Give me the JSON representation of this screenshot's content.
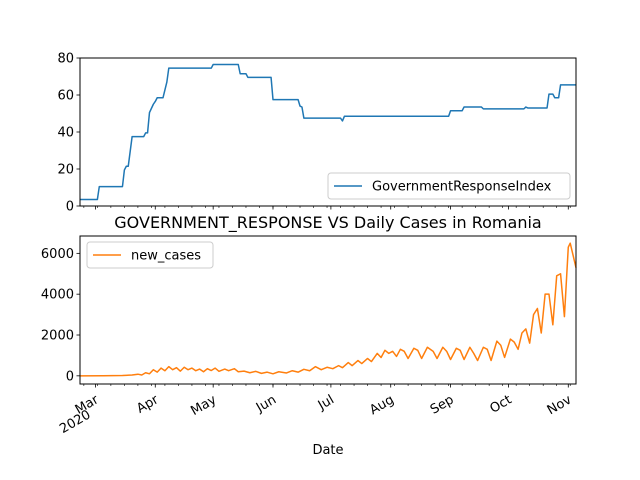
{
  "chart_data": [
    {
      "type": "line",
      "title": "",
      "xlabel": "",
      "ylabel": "",
      "ylim": [
        0,
        80
      ],
      "yticks": [
        0,
        20,
        40,
        60,
        80
      ],
      "xlim": [
        "2020-02-22",
        "2020-11-05"
      ],
      "legend": "lower-right",
      "colors": {
        "GovernmentResponseIndex": "#1f77b4"
      },
      "series": [
        {
          "name": "GovernmentResponseIndex",
          "points": [
            [
              "2020-02-22",
              3.5
            ],
            [
              "2020-03-02",
              3.5
            ],
            [
              "2020-03-03",
              10.5
            ],
            [
              "2020-03-15",
              10.5
            ],
            [
              "2020-03-16",
              19.5
            ],
            [
              "2020-03-17",
              21.5
            ],
            [
              "2020-03-18",
              21.5
            ],
            [
              "2020-03-20",
              37.5
            ],
            [
              "2020-03-26",
              37.5
            ],
            [
              "2020-03-27",
              39.5
            ],
            [
              "2020-03-28",
              39.5
            ],
            [
              "2020-03-29",
              50.5
            ],
            [
              "2020-03-31",
              55
            ],
            [
              "2020-04-01",
              56.5
            ],
            [
              "2020-04-02",
              58.5
            ],
            [
              "2020-04-05",
              58.5
            ],
            [
              "2020-04-07",
              67
            ],
            [
              "2020-04-08",
              74.5
            ],
            [
              "2020-04-30",
              74.5
            ],
            [
              "2020-05-01",
              76.5
            ],
            [
              "2020-05-14",
              76.5
            ],
            [
              "2020-05-15",
              71.5
            ],
            [
              "2020-05-18",
              71.5
            ],
            [
              "2020-05-19",
              69.5
            ],
            [
              "2020-05-31",
              69.5
            ],
            [
              "2020-06-01",
              57.5
            ],
            [
              "2020-06-14",
              57.5
            ],
            [
              "2020-06-15",
              54
            ],
            [
              "2020-06-16",
              53.5
            ],
            [
              "2020-06-17",
              47.5
            ],
            [
              "2020-07-06",
              47.5
            ],
            [
              "2020-07-07",
              46
            ],
            [
              "2020-07-08",
              48.5
            ],
            [
              "2020-08-31",
              48.5
            ],
            [
              "2020-09-01",
              51.5
            ],
            [
              "2020-09-07",
              51.5
            ],
            [
              "2020-09-08",
              53.5
            ],
            [
              "2020-09-17",
              53.5
            ],
            [
              "2020-09-18",
              52.5
            ],
            [
              "2020-10-09",
              52.5
            ],
            [
              "2020-10-10",
              53.5
            ],
            [
              "2020-10-11",
              53
            ],
            [
              "2020-10-21",
              53
            ],
            [
              "2020-10-22",
              60.5
            ],
            [
              "2020-10-24",
              60.5
            ],
            [
              "2020-10-25",
              58.5
            ],
            [
              "2020-10-27",
              58.5
            ],
            [
              "2020-10-28",
              65.5
            ],
            [
              "2020-11-05",
              65.5
            ]
          ]
        }
      ]
    },
    {
      "type": "line",
      "title": "GOVERNMENT_RESPONSE VS Daily Cases in Romania",
      "xlabel": "Date",
      "ylabel": "",
      "ylim": [
        -400,
        6850
      ],
      "yticks": [
        0,
        2000,
        4000,
        6000
      ],
      "xlim": [
        "2020-02-22",
        "2020-11-05"
      ],
      "legend": "upper-left",
      "colors": {
        "new_cases": "#ff7f0e"
      },
      "xtick_labels": [
        {
          "date": "2020-03-01",
          "label": "Mar",
          "sublabel": "2020"
        },
        {
          "date": "2020-04-01",
          "label": "Apr"
        },
        {
          "date": "2020-05-01",
          "label": "May"
        },
        {
          "date": "2020-06-01",
          "label": "Jun"
        },
        {
          "date": "2020-07-01",
          "label": "Jul"
        },
        {
          "date": "2020-08-01",
          "label": "Aug"
        },
        {
          "date": "2020-09-01",
          "label": "Sep"
        },
        {
          "date": "2020-10-01",
          "label": "Oct"
        },
        {
          "date": "2020-11-01",
          "label": "Nov"
        }
      ],
      "series": [
        {
          "name": "new_cases",
          "points": [
            [
              "2020-02-22",
              0
            ],
            [
              "2020-03-05",
              2
            ],
            [
              "2020-03-15",
              15
            ],
            [
              "2020-03-20",
              40
            ],
            [
              "2020-03-23",
              80
            ],
            [
              "2020-03-25",
              40
            ],
            [
              "2020-03-27",
              150
            ],
            [
              "2020-03-29",
              100
            ],
            [
              "2020-03-31",
              300
            ],
            [
              "2020-04-02",
              180
            ],
            [
              "2020-04-04",
              380
            ],
            [
              "2020-04-06",
              250
            ],
            [
              "2020-04-08",
              450
            ],
            [
              "2020-04-10",
              300
            ],
            [
              "2020-04-12",
              400
            ],
            [
              "2020-04-14",
              230
            ],
            [
              "2020-04-16",
              420
            ],
            [
              "2020-04-18",
              300
            ],
            [
              "2020-04-20",
              380
            ],
            [
              "2020-04-22",
              250
            ],
            [
              "2020-04-24",
              330
            ],
            [
              "2020-04-26",
              200
            ],
            [
              "2020-04-28",
              350
            ],
            [
              "2020-04-30",
              260
            ],
            [
              "2020-05-02",
              380
            ],
            [
              "2020-05-04",
              220
            ],
            [
              "2020-05-07",
              330
            ],
            [
              "2020-05-09",
              250
            ],
            [
              "2020-05-12",
              350
            ],
            [
              "2020-05-14",
              200
            ],
            [
              "2020-05-17",
              230
            ],
            [
              "2020-05-20",
              150
            ],
            [
              "2020-05-23",
              220
            ],
            [
              "2020-05-26",
              120
            ],
            [
              "2020-05-29",
              180
            ],
            [
              "2020-06-01",
              100
            ],
            [
              "2020-06-04",
              200
            ],
            [
              "2020-06-08",
              140
            ],
            [
              "2020-06-11",
              250
            ],
            [
              "2020-06-14",
              180
            ],
            [
              "2020-06-17",
              320
            ],
            [
              "2020-06-20",
              250
            ],
            [
              "2020-06-23",
              450
            ],
            [
              "2020-06-26",
              300
            ],
            [
              "2020-06-29",
              420
            ],
            [
              "2020-07-02",
              350
            ],
            [
              "2020-07-05",
              500
            ],
            [
              "2020-07-07",
              400
            ],
            [
              "2020-07-10",
              650
            ],
            [
              "2020-07-12",
              500
            ],
            [
              "2020-07-15",
              750
            ],
            [
              "2020-07-17",
              600
            ],
            [
              "2020-07-20",
              850
            ],
            [
              "2020-07-22",
              700
            ],
            [
              "2020-07-25",
              1100
            ],
            [
              "2020-07-27",
              900
            ],
            [
              "2020-07-29",
              1250
            ],
            [
              "2020-07-31",
              1100
            ],
            [
              "2020-08-02",
              1200
            ],
            [
              "2020-08-04",
              950
            ],
            [
              "2020-08-06",
              1300
            ],
            [
              "2020-08-08",
              1200
            ],
            [
              "2020-08-10",
              850
            ],
            [
              "2020-08-13",
              1350
            ],
            [
              "2020-08-15",
              1250
            ],
            [
              "2020-08-17",
              850
            ],
            [
              "2020-08-20",
              1400
            ],
            [
              "2020-08-23",
              1200
            ],
            [
              "2020-08-25",
              850
            ],
            [
              "2020-08-28",
              1400
            ],
            [
              "2020-08-30",
              1200
            ],
            [
              "2020-09-01",
              800
            ],
            [
              "2020-09-04",
              1350
            ],
            [
              "2020-09-06",
              1250
            ],
            [
              "2020-09-08",
              800
            ],
            [
              "2020-09-11",
              1400
            ],
            [
              "2020-09-13",
              1100
            ],
            [
              "2020-09-15",
              750
            ],
            [
              "2020-09-18",
              1400
            ],
            [
              "2020-09-20",
              1300
            ],
            [
              "2020-09-22",
              750
            ],
            [
              "2020-09-25",
              1700
            ],
            [
              "2020-09-27",
              1500
            ],
            [
              "2020-09-29",
              900
            ],
            [
              "2020-10-02",
              1800
            ],
            [
              "2020-10-04",
              1650
            ],
            [
              "2020-10-06",
              1300
            ],
            [
              "2020-10-08",
              2100
            ],
            [
              "2020-10-10",
              2300
            ],
            [
              "2020-10-12",
              1600
            ],
            [
              "2020-10-14",
              3000
            ],
            [
              "2020-10-16",
              3300
            ],
            [
              "2020-10-18",
              2100
            ],
            [
              "2020-10-20",
              4000
            ],
            [
              "2020-10-22",
              4000
            ],
            [
              "2020-10-24",
              2500
            ],
            [
              "2020-10-26",
              4900
            ],
            [
              "2020-10-28",
              5000
            ],
            [
              "2020-10-30",
              2900
            ],
            [
              "2020-11-01",
              6300
            ],
            [
              "2020-11-02",
              6500
            ],
            [
              "2020-11-05",
              5300
            ]
          ]
        }
      ]
    }
  ]
}
